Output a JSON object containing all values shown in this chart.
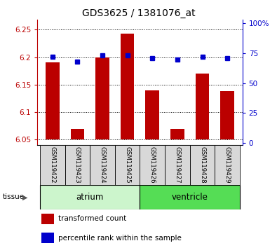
{
  "title": "GDS3625 / 1381076_at",
  "samples": [
    "GSM119422",
    "GSM119423",
    "GSM119424",
    "GSM119425",
    "GSM119426",
    "GSM119427",
    "GSM119428",
    "GSM119429"
  ],
  "red_values": [
    6.19,
    6.07,
    6.2,
    6.243,
    6.14,
    6.07,
    6.17,
    6.138
  ],
  "blue_values": [
    72,
    68,
    73,
    73,
    71,
    70,
    72,
    71
  ],
  "baseline": 6.05,
  "ylim_left": [
    6.04,
    6.268
  ],
  "ylim_right": [
    -2,
    103
  ],
  "yticks_left": [
    6.05,
    6.1,
    6.15,
    6.2,
    6.25
  ],
  "ytick_labels_left": [
    "6.05",
    "6.1",
    "6.15",
    "6.2",
    "6.25"
  ],
  "yticks_right": [
    0,
    25,
    50,
    75,
    100
  ],
  "ytick_labels_right": [
    "0",
    "25",
    "50",
    "75",
    "100%"
  ],
  "red_color": "#bb0000",
  "blue_color": "#0000cc",
  "bar_width": 0.55,
  "tissue_groups": [
    {
      "label": "atrium",
      "start": 0,
      "end": 3,
      "color": "#ccf5cc"
    },
    {
      "label": "ventricle",
      "start": 4,
      "end": 7,
      "color": "#55dd55"
    }
  ],
  "tissue_label": "tissue",
  "sample_bg_color": "#d8d8d8",
  "legend_items": [
    "transformed count",
    "percentile rank within the sample"
  ]
}
